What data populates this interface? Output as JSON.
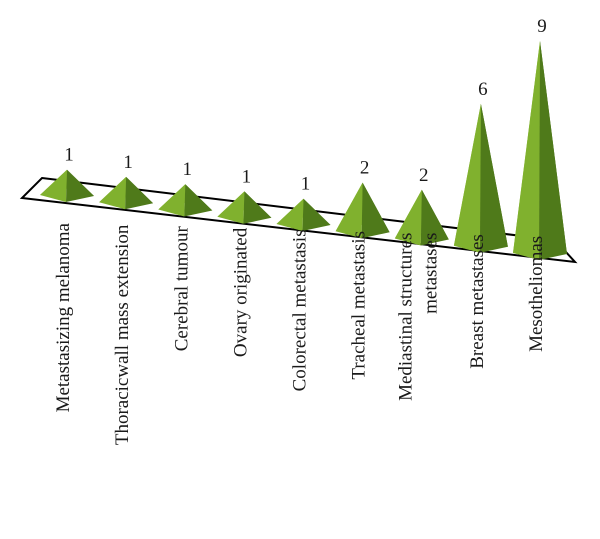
{
  "chart_data": {
    "type": "bar",
    "style": "3d-pyramid",
    "categories": [
      [
        "Metastasizing melanoma"
      ],
      [
        "Thoracicwall mass extension"
      ],
      [
        "Cerebral tumour"
      ],
      [
        "Ovary originated"
      ],
      [
        "Colorectal metastasis"
      ],
      [
        "Tracheal metastasis"
      ],
      [
        "Mediastinal structures",
        "metastases"
      ],
      [
        "Breast metastases"
      ],
      [
        "Mesotheliomas"
      ]
    ],
    "values": [
      1,
      1,
      1,
      1,
      1,
      2,
      2,
      6,
      9
    ],
    "title": "",
    "xlabel": "",
    "ylabel": "",
    "ylim": [
      0,
      9
    ],
    "grid": false,
    "legend": "none",
    "colors": {
      "light": "#9bc444",
      "mid": "#80b12e",
      "dark": "#4f7a1a",
      "floor_edge": "#000000"
    }
  }
}
